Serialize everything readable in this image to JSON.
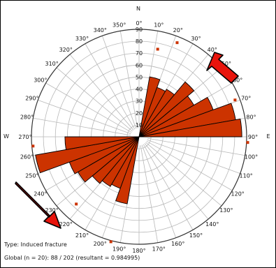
{
  "chart_data": {
    "type": "rose",
    "title": "",
    "compass": {
      "north": "N",
      "east": "E",
      "west": "W"
    },
    "angle_ticks": [
      "0°",
      "10°",
      "20°",
      "30°",
      "40°",
      "50°",
      "60°",
      "70°",
      "80°",
      "90°",
      "100°",
      "110°",
      "120°",
      "130°",
      "140°",
      "150°",
      "160°",
      "170°",
      "180°",
      "190°",
      "200°",
      "210°",
      "220°",
      "230°",
      "240°",
      "250°",
      "260°",
      "270°",
      "280°",
      "290°",
      "300°",
      "310°",
      "320°",
      "330°",
      "340°",
      "350°"
    ],
    "radial_ticks": [
      10,
      20,
      30,
      40,
      50,
      60,
      70,
      80,
      90
    ],
    "rmax": 90,
    "bin_width_deg": 10,
    "petals": [
      {
        "from": 10,
        "to": 20,
        "value": 51
      },
      {
        "from": 20,
        "to": 30,
        "value": 44
      },
      {
        "from": 30,
        "to": 40,
        "value": 46
      },
      {
        "from": 40,
        "to": 50,
        "value": 60
      },
      {
        "from": 50,
        "to": 60,
        "value": 53
      },
      {
        "from": 60,
        "to": 70,
        "value": 66
      },
      {
        "from": 70,
        "to": 80,
        "value": 82
      },
      {
        "from": 80,
        "to": 90,
        "value": 86
      },
      {
        "from": 190,
        "to": 200,
        "value": 57
      },
      {
        "from": 200,
        "to": 210,
        "value": 46
      },
      {
        "from": 210,
        "to": 220,
        "value": 48
      },
      {
        "from": 220,
        "to": 230,
        "value": 51
      },
      {
        "from": 230,
        "to": 240,
        "value": 59
      },
      {
        "from": 240,
        "to": 250,
        "value": 62
      },
      {
        "from": 250,
        "to": 260,
        "value": 88
      },
      {
        "from": 260,
        "to": 270,
        "value": 62
      }
    ],
    "outliers": [
      {
        "angle": 12,
        "r": 75
      },
      {
        "angle": 22,
        "r": 85
      },
      {
        "angle": 69,
        "r": 86
      },
      {
        "angle": 93,
        "r": 91
      },
      {
        "angle": 195,
        "r": 91
      },
      {
        "angle": 223,
        "r": 77
      },
      {
        "angle": 265,
        "r": 89
      }
    ],
    "colors": {
      "petal": "#cc3300",
      "petal_stroke": "#000000",
      "grid": "#b8b8b8",
      "arrow": "#e8140c"
    }
  },
  "footer": {
    "type_label": "Type: Induced fracture",
    "global_label": "Global (n = 20): 88 / 202 (resultant = 0.984995)"
  }
}
